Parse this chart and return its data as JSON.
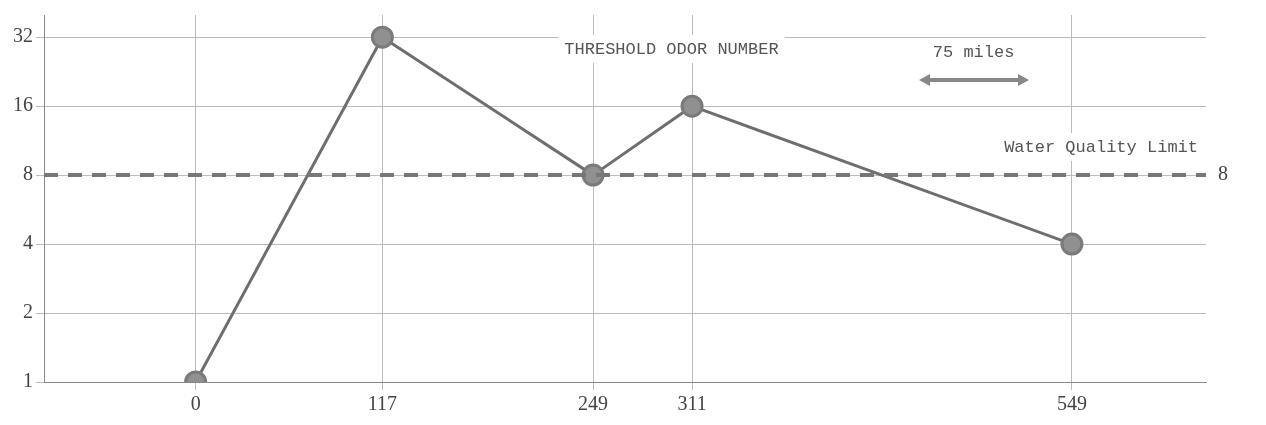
{
  "chart_data": {
    "type": "line",
    "x": [
      0,
      117,
      249,
      311,
      549
    ],
    "series": [
      {
        "color": "#6e6e6e",
        "values": [
          1,
          32,
          8,
          16,
          4
        ]
      }
    ],
    "xlim": [
      -95,
      633
    ],
    "xticks": [
      0,
      117,
      249,
      311,
      549
    ],
    "ylim": [
      1,
      40
    ],
    "yticks": [
      1,
      2,
      4,
      8,
      16,
      32
    ],
    "log": "y",
    "grid": true,
    "marker": "circle",
    "line_style": "solid",
    "legend": false,
    "ref_lines": [
      {
        "axis": "y",
        "value": 8,
        "label": "Water Quality Limit",
        "color": "#777777",
        "line_style": "dashed"
      }
    ],
    "annotations": [
      "THRESHOLD ODOR NUMBER",
      "75 miles",
      "8"
    ]
  }
}
